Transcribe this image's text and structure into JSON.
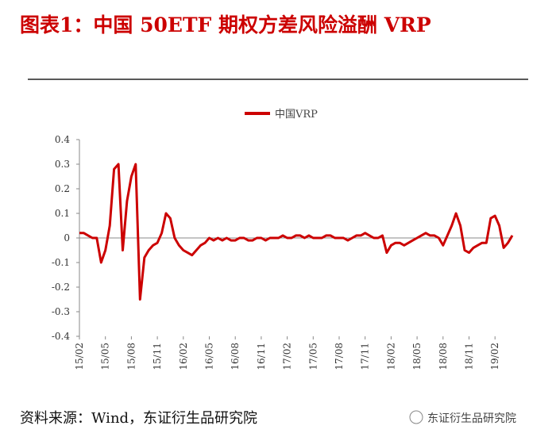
{
  "title": "图表1：中国 50ETF 期权方差风险溢酬 VRP",
  "source": "资料来源：Wind，东证衍生品研究院",
  "watermark": "东证衍生品研究院",
  "chart_data": {
    "type": "line",
    "categories": [
      "15/02",
      null,
      null,
      null,
      null,
      null,
      "15/05",
      null,
      null,
      null,
      null,
      null,
      "15/08",
      null,
      null,
      null,
      null,
      null,
      "15/11",
      null,
      null,
      null,
      null,
      null,
      "16/02",
      null,
      null,
      null,
      null,
      null,
      "16/05",
      null,
      null,
      null,
      null,
      null,
      "16/08",
      null,
      null,
      null,
      null,
      null,
      "16/11",
      null,
      null,
      null,
      null,
      null,
      "17/02",
      null,
      null,
      null,
      null,
      null,
      "17/05",
      null,
      null,
      null,
      null,
      null,
      "17/08",
      null,
      null,
      null,
      null,
      null,
      "17/11",
      null,
      null,
      null,
      null,
      null,
      "18/02",
      null,
      null,
      null,
      null,
      null,
      "18/05",
      null,
      null,
      null,
      null,
      null,
      "18/08",
      null,
      null,
      null,
      null,
      null,
      "18/11",
      null,
      null,
      null,
      null,
      null,
      "19/02",
      null,
      null,
      null,
      null
    ],
    "series": [
      {
        "name": "中国VRP",
        "color": "#cc0000",
        "values": [
          0.02,
          0.02,
          0.01,
          0.0,
          0.0,
          -0.1,
          -0.05,
          0.05,
          0.28,
          0.3,
          -0.05,
          0.15,
          0.25,
          0.3,
          -0.25,
          -0.08,
          -0.05,
          -0.03,
          -0.02,
          0.02,
          0.1,
          0.08,
          0.0,
          -0.03,
          -0.05,
          -0.06,
          -0.07,
          -0.05,
          -0.03,
          -0.02,
          0.0,
          -0.01,
          0.0,
          -0.01,
          0.0,
          -0.01,
          -0.01,
          0.0,
          0.0,
          -0.01,
          -0.01,
          0.0,
          0.0,
          -0.01,
          0.0,
          0.0,
          0.0,
          0.01,
          0.0,
          0.0,
          0.01,
          0.01,
          0.0,
          0.01,
          0.0,
          0.0,
          0.0,
          0.01,
          0.01,
          0.0,
          0.0,
          0.0,
          -0.01,
          0.0,
          0.01,
          0.01,
          0.02,
          0.01,
          0.0,
          0.0,
          0.01,
          -0.06,
          -0.03,
          -0.02,
          -0.02,
          -0.03,
          -0.02,
          -0.01,
          0.0,
          0.01,
          0.02,
          0.01,
          0.01,
          0.0,
          -0.03,
          0.01,
          0.05,
          0.1,
          0.05,
          -0.05,
          -0.06,
          -0.04,
          -0.03,
          -0.02,
          -0.02,
          0.08,
          0.09,
          0.05,
          -0.04,
          -0.02,
          0.01
        ]
      }
    ],
    "ylim": [
      -0.4,
      0.4
    ],
    "yticks": [
      -0.4,
      -0.3,
      -0.2,
      -0.1,
      0,
      0.1,
      0.2,
      0.3,
      0.4
    ]
  }
}
